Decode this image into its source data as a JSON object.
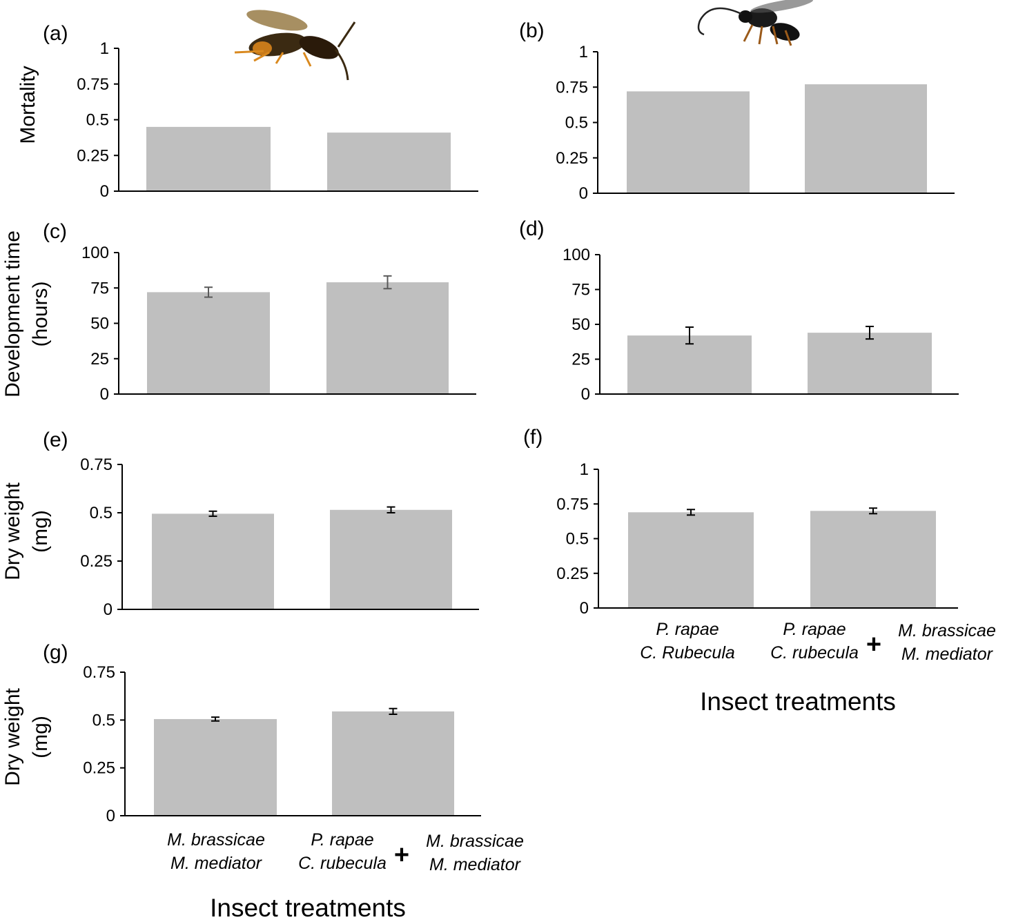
{
  "colors": {
    "bar": "#bfbfbf",
    "axis": "#000000",
    "error_bar": "#000000",
    "error_bar_light": "#595959"
  },
  "icons": {
    "panel_a": "wasp-photo-orange-icon",
    "panel_b": "wasp-photo-black-icon"
  },
  "chart_data": [
    {
      "id": "a",
      "type": "bar",
      "panel_label": "(a)",
      "ylabel": [
        "Mortality"
      ],
      "yticks": [
        "0",
        "0.25",
        "0.5",
        "0.75",
        "1"
      ],
      "ylim": [
        0,
        1
      ],
      "values": [
        0.45,
        0.41
      ],
      "errors": null,
      "grid": false,
      "image": "wasp-photo-orange-icon"
    },
    {
      "id": "b",
      "type": "bar",
      "panel_label": "(b)",
      "ylabel": [],
      "yticks": [
        "0",
        "0.25",
        "0.5",
        "0.75",
        "1"
      ],
      "ylim": [
        0,
        1
      ],
      "values": [
        0.72,
        0.77
      ],
      "errors": null,
      "grid": false,
      "image": "wasp-photo-black-icon"
    },
    {
      "id": "c",
      "type": "bar",
      "panel_label": "(c)",
      "ylabel": [
        "Development time",
        "(hours)"
      ],
      "yticks": [
        "0",
        "25",
        "50",
        "75",
        "100"
      ],
      "ylim": [
        0,
        100
      ],
      "values": [
        72,
        79
      ],
      "errors": [
        3.5,
        4.5
      ],
      "error_style": "light",
      "grid": false
    },
    {
      "id": "d",
      "type": "bar",
      "panel_label": "(d)",
      "ylabel": [],
      "yticks": [
        "0",
        "25",
        "50",
        "75",
        "100"
      ],
      "ylim": [
        0,
        100
      ],
      "values": [
        42,
        44
      ],
      "errors": [
        6,
        4.5
      ],
      "grid": false
    },
    {
      "id": "e",
      "type": "bar",
      "panel_label": "(e)",
      "ylabel": [
        "Dry weight",
        "(mg)"
      ],
      "yticks": [
        "0",
        "0.25",
        "0.5",
        "0.75"
      ],
      "ylim": [
        0,
        0.75
      ],
      "values": [
        0.495,
        0.515
      ],
      "errors": [
        0.013,
        0.015
      ],
      "grid": false
    },
    {
      "id": "f",
      "type": "bar",
      "panel_label": "(f)",
      "ylabel": [],
      "yticks": [
        "0",
        "0.25",
        "0.5",
        "0.75",
        "1"
      ],
      "ylim": [
        0,
        1
      ],
      "values": [
        0.69,
        0.7
      ],
      "errors": [
        0.02,
        0.02
      ],
      "grid": false
    },
    {
      "id": "g",
      "type": "bar",
      "panel_label": "(g)",
      "ylabel": [
        "Dry weight",
        "(mg)"
      ],
      "yticks": [
        "0",
        "0.25",
        "0.5",
        "0.75"
      ],
      "ylim": [
        0,
        0.75
      ],
      "values": [
        0.505,
        0.545
      ],
      "errors": [
        0.01,
        0.015
      ],
      "grid": false
    }
  ],
  "right_axis": {
    "categories": [
      {
        "lines": [
          "P. rapae",
          "C. Rubecula"
        ]
      },
      {
        "lines": [
          "P. rapae",
          "C. rubecula"
        ],
        "plus": "+",
        "extra": [
          "M. brassicae",
          "M. mediator"
        ]
      }
    ],
    "title": "Insect treatments"
  },
  "left_axis": {
    "categories": [
      {
        "lines": [
          "M. brassicae",
          "M. mediator"
        ]
      },
      {
        "lines": [
          "P. rapae",
          "C. rubecula"
        ],
        "plus": "+",
        "extra": [
          "M. brassicae",
          "M. mediator"
        ]
      }
    ],
    "title": "Insect treatments"
  }
}
